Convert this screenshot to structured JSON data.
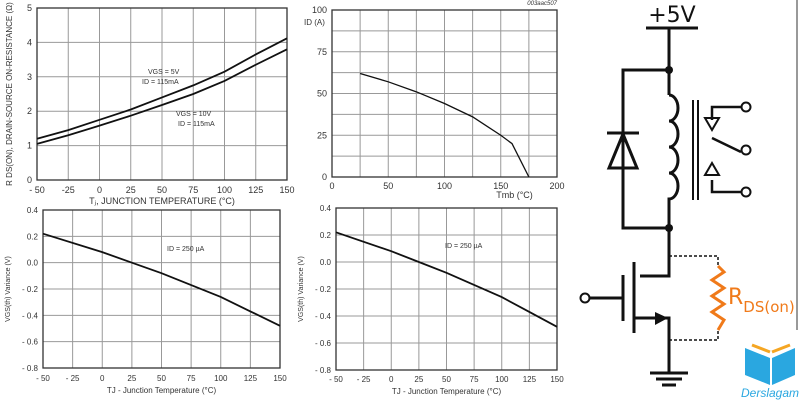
{
  "chart_data": [
    {
      "type": "line",
      "title": "",
      "xlabel": "Tⱼ, JUNCTION TEMPERATURE (°C)",
      "ylabel": "R DS(ON), DRAIN-SOURCE ON-RESISTANCE (Ω)",
      "xlim": [
        -50,
        150
      ],
      "ylim": [
        0,
        5
      ],
      "xticks": [
        -50,
        -25,
        0,
        25,
        50,
        75,
        100,
        125,
        150
      ],
      "xtick_labels": [
        "- 50",
        "-25",
        "0",
        "25",
        "50",
        "75",
        "100",
        "125",
        "150"
      ],
      "yticks": [
        0,
        1,
        2,
        3,
        4,
        5
      ],
      "ytick_labels": [
        "0",
        "1",
        "2",
        "3",
        "4",
        "5"
      ],
      "grid": true,
      "x": [
        -50,
        -25,
        0,
        25,
        50,
        75,
        100,
        125,
        150
      ],
      "series": [
        {
          "name": "VGS = 5V, ID = 115mA",
          "values": [
            1.2,
            1.45,
            1.75,
            2.05,
            2.4,
            2.75,
            3.15,
            3.65,
            4.12
          ]
        },
        {
          "name": "VGS = 10V, ID = 115mA",
          "values": [
            1.05,
            1.3,
            1.58,
            1.87,
            2.18,
            2.5,
            2.88,
            3.35,
            3.8
          ]
        }
      ],
      "annotations": [
        "VGS = 5V",
        "ID = 115mA",
        "VGS = 10V",
        "ID = 115mA"
      ]
    },
    {
      "type": "line",
      "title": "003aac507",
      "xlabel": "Tmb (°C)",
      "ylabel": "ID (A)",
      "xlim": [
        0,
        200
      ],
      "ylim": [
        0,
        100
      ],
      "xticks": [
        0,
        50,
        100,
        150,
        200
      ],
      "xtick_labels": [
        "0",
        "50",
        "100",
        "150",
        "200"
      ],
      "yticks": [
        0,
        25,
        50,
        75,
        100
      ],
      "ytick_labels": [
        "0",
        "25",
        "50",
        "75",
        "100"
      ],
      "grid": true,
      "x": [
        25,
        50,
        75,
        100,
        125,
        150,
        160,
        175
      ],
      "series": [
        {
          "name": "ID",
          "values": [
            62,
            57,
            51,
            44,
            36,
            25,
            20,
            0
          ]
        }
      ],
      "annotations": []
    },
    {
      "type": "line",
      "title": "",
      "xlabel": "TJ - Junction Temperature (°C)",
      "ylabel": "VGS(th) Variance (V)",
      "xlim": [
        -50,
        150
      ],
      "ylim": [
        -0.8,
        0.4
      ],
      "xticks": [
        -50,
        -25,
        0,
        25,
        50,
        75,
        100,
        125,
        150
      ],
      "xtick_labels": [
        "- 50",
        "- 25",
        "0",
        "25",
        "50",
        "75",
        "100",
        "125",
        "150"
      ],
      "yticks": [
        -0.8,
        -0.6,
        -0.4,
        -0.2,
        0,
        0.2,
        0.4
      ],
      "ytick_labels": [
        "- 0.8",
        "- 0.6",
        "- 0.4",
        "- 0.2",
        "0.0",
        "0.2",
        "0.4"
      ],
      "grid": true,
      "x": [
        -50,
        0,
        25,
        50,
        75,
        100,
        125,
        150
      ],
      "series": [
        {
          "name": "ID = 250 µA",
          "values": [
            0.22,
            0.08,
            0.0,
            -0.08,
            -0.17,
            -0.26,
            -0.37,
            -0.48
          ]
        }
      ],
      "annotations": [
        "ID = 250 µA"
      ]
    },
    {
      "type": "line",
      "title": "",
      "xlabel": "TJ - Junction Temperature (°C)",
      "ylabel": "VGS(th) Variance (V)",
      "xlim": [
        -50,
        150
      ],
      "ylim": [
        -0.8,
        0.4
      ],
      "xticks": [
        -50,
        -25,
        0,
        25,
        50,
        75,
        100,
        125,
        150
      ],
      "xtick_labels": [
        "- 50",
        "- 25",
        "0",
        "25",
        "50",
        "75",
        "100",
        "125",
        "150"
      ],
      "yticks": [
        -0.8,
        -0.6,
        -0.4,
        -0.2,
        0,
        0.2,
        0.4
      ],
      "ytick_labels": [
        "- 0.8",
        "- 0.6",
        "- 0.4",
        "- 0.2",
        "0.0",
        "0.2",
        "0.4"
      ],
      "grid": true,
      "x": [
        -50,
        0,
        25,
        50,
        75,
        100,
        125,
        150
      ],
      "series": [
        {
          "name": "ID = 250 µA",
          "values": [
            0.22,
            0.08,
            0.0,
            -0.08,
            -0.17,
            -0.26,
            -0.37,
            -0.48
          ]
        }
      ],
      "annotations": [
        "ID = 250 µA"
      ]
    }
  ],
  "circuit": {
    "supply": "+5V",
    "resistor_main": "R",
    "resistor_sub": "DS(on)",
    "accent": "#f07a1a"
  },
  "logo": {
    "text": "Derslagam",
    "color": "#2aa7e0"
  }
}
